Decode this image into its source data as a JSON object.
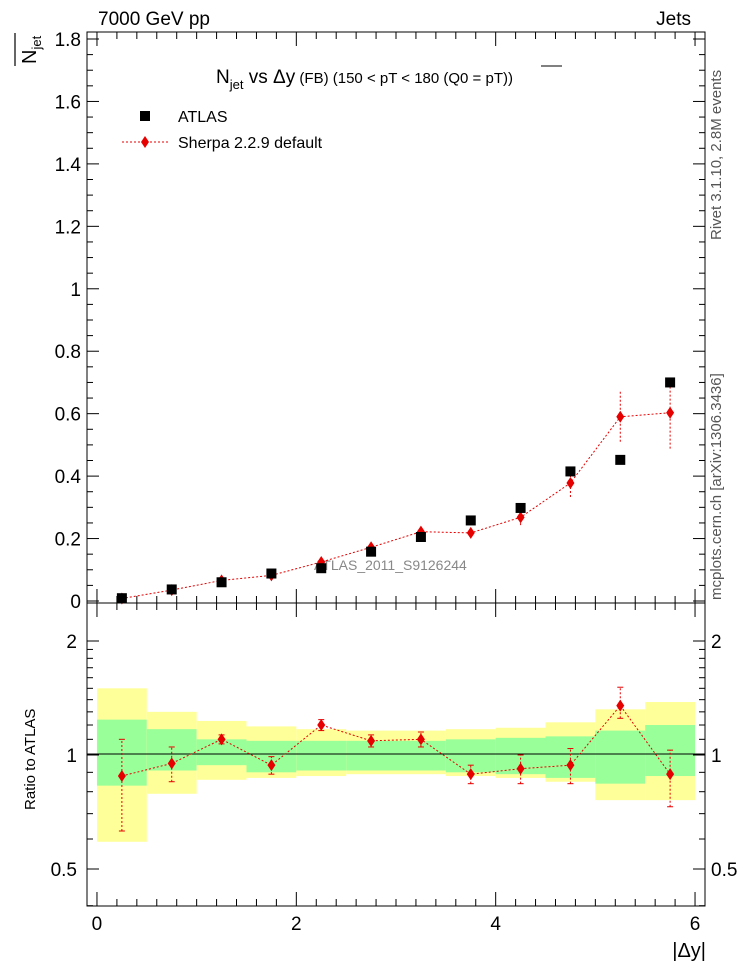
{
  "header": {
    "left": "7000 GeV pp",
    "right": "Jets"
  },
  "side_label": "Rivet 3.1.10, 2.8M events",
  "side_label2": "mcplots.cern.ch [arXiv:1306.3436]",
  "analysis_id": "ATLAS_2011_S9126244",
  "colors": {
    "mc": "#e60000",
    "band_inner": "#99ff99",
    "band_outer": "#ffff99",
    "data": "#000000"
  },
  "chart_data": [
    {
      "type": "scatter",
      "title": "N_jet vs Δy (FB) (150 < pT < 180 (Q0 = pT))",
      "title_parts": {
        "n": "N",
        "sub": "jet",
        "vs": " vs ",
        "dy": "Δy",
        "fb": "(FB)",
        "range": "(150 < pT < 180 (Q0 = ",
        "pt": "pT",
        "close": "))"
      },
      "ylabel": "N̄jet",
      "ylabel_parts": {
        "n": "N",
        "sub": "jet"
      },
      "ylim": [
        0,
        1.82
      ],
      "yticks": [
        0,
        0.2,
        0.4,
        0.6,
        0.8,
        1,
        1.2,
        1.4,
        1.6,
        1.8
      ],
      "ytick_labels": [
        "0",
        "0.2",
        "0.4",
        "0.6",
        "0.8",
        "1",
        "1.2",
        "1.4",
        "1.6",
        "1.8"
      ],
      "xlim": [
        -0.1,
        6.1
      ],
      "legend": {
        "placement": "top-left",
        "data_label": "ATLAS",
        "mc_label": "Sherpa 2.2.9 default"
      },
      "series": [
        {
          "name": "ATLAS",
          "x": [
            0.25,
            0.75,
            1.25,
            1.75,
            2.25,
            2.75,
            3.25,
            3.75,
            4.25,
            4.75,
            5.25,
            5.75
          ],
          "values": [
            0.009,
            0.037,
            0.06,
            0.088,
            0.105,
            0.158,
            0.205,
            0.258,
            0.298,
            0.415,
            0.452,
            0.7
          ]
        },
        {
          "name": "Sherpa 2.2.9 default",
          "x": [
            0.25,
            0.75,
            1.25,
            1.75,
            2.25,
            2.75,
            3.25,
            3.75,
            4.25,
            4.75,
            5.25,
            5.75
          ],
          "values": [
            0.008,
            0.035,
            0.066,
            0.082,
            0.125,
            0.172,
            0.222,
            0.218,
            0.268,
            0.378,
            0.59,
            0.603
          ],
          "err": [
            0.003,
            0.004,
            0.005,
            0.005,
            0.005,
            0.006,
            0.01,
            0.015,
            0.025,
            0.045,
            0.08,
            0.115
          ]
        }
      ]
    },
    {
      "type": "scatter",
      "ylabel": "Ratio to ATLAS",
      "xlabel": "|Δy|",
      "ylim": [
        0.35,
        2.3
      ],
      "yticks": [
        0.5,
        1,
        2
      ],
      "ytick_labels": [
        "0.5",
        "1",
        "2"
      ],
      "xlim": [
        -0.1,
        6.1
      ],
      "xticks": [
        0,
        2,
        4,
        6
      ],
      "xtick_labels": [
        "0",
        "2",
        "4",
        "6"
      ],
      "bins": [
        [
          0,
          0.5
        ],
        [
          0.5,
          1
        ],
        [
          1,
          1.5
        ],
        [
          1.5,
          2
        ],
        [
          2,
          2.5
        ],
        [
          2.5,
          3
        ],
        [
          3,
          3.5
        ],
        [
          3.5,
          4
        ],
        [
          4,
          4.5
        ],
        [
          4.5,
          5
        ],
        [
          5,
          5.5
        ],
        [
          5.5,
          6
        ]
      ],
      "band_inner": [
        [
          0.83,
          1.24
        ],
        [
          0.91,
          1.17
        ],
        [
          0.94,
          1.1
        ],
        [
          0.9,
          1.09
        ],
        [
          0.91,
          1.09
        ],
        [
          0.91,
          1.09
        ],
        [
          0.91,
          1.09
        ],
        [
          0.9,
          1.1
        ],
        [
          0.89,
          1.11
        ],
        [
          0.87,
          1.12
        ],
        [
          0.84,
          1.16
        ],
        [
          0.88,
          1.2
        ]
      ],
      "band_outer": [
        [
          0.59,
          1.5
        ],
        [
          0.79,
          1.3
        ],
        [
          0.86,
          1.23
        ],
        [
          0.87,
          1.19
        ],
        [
          0.88,
          1.17
        ],
        [
          0.89,
          1.16
        ],
        [
          0.89,
          1.16
        ],
        [
          0.88,
          1.17
        ],
        [
          0.87,
          1.18
        ],
        [
          0.85,
          1.22
        ],
        [
          0.76,
          1.32
        ],
        [
          0.76,
          1.38
        ]
      ],
      "series": [
        {
          "name": "Sherpa 2.2.9 default",
          "x": [
            0.25,
            0.75,
            1.25,
            1.75,
            2.25,
            2.75,
            3.25,
            3.75,
            4.25,
            4.75,
            5.25,
            5.75
          ],
          "values": [
            0.88,
            0.95,
            1.1,
            0.94,
            1.2,
            1.09,
            1.1,
            0.89,
            0.92,
            0.94,
            1.35,
            0.89
          ],
          "err_low": [
            0.25,
            0.1,
            0.03,
            0.05,
            0.04,
            0.04,
            0.05,
            0.05,
            0.08,
            0.1,
            0.1,
            0.16
          ],
          "err_high": [
            0.22,
            0.1,
            0.03,
            0.05,
            0.04,
            0.04,
            0.05,
            0.05,
            0.08,
            0.1,
            0.16,
            0.14
          ]
        }
      ]
    }
  ]
}
